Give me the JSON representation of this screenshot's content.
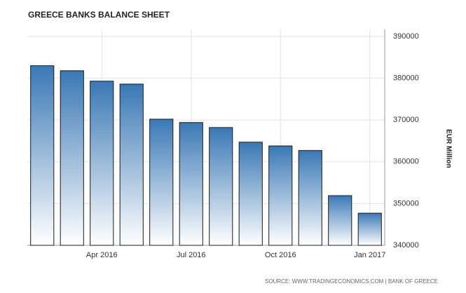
{
  "chart_data": {
    "type": "bar",
    "title": "GREECE BANKS BALANCE SHEET",
    "categories": [
      null,
      null,
      "Apr 2016",
      null,
      null,
      "Jul 2016",
      null,
      null,
      "Oct 2016",
      null,
      null,
      "Jan 2017"
    ],
    "values": [
      383000,
      381800,
      379300,
      378600,
      370200,
      369400,
      368200,
      364700,
      363800,
      362700,
      351900,
      347700
    ],
    "color": "#3a78b5",
    "ylim": [
      340000,
      390000
    ],
    "yticks": [
      340000,
      350000,
      360000,
      370000,
      380000,
      390000
    ],
    "y_axis_label": "EUR Million",
    "grid": true,
    "source": "SOURCE: WWW.TRADINGECONOMICS.COM | BANK OF GREECE"
  }
}
